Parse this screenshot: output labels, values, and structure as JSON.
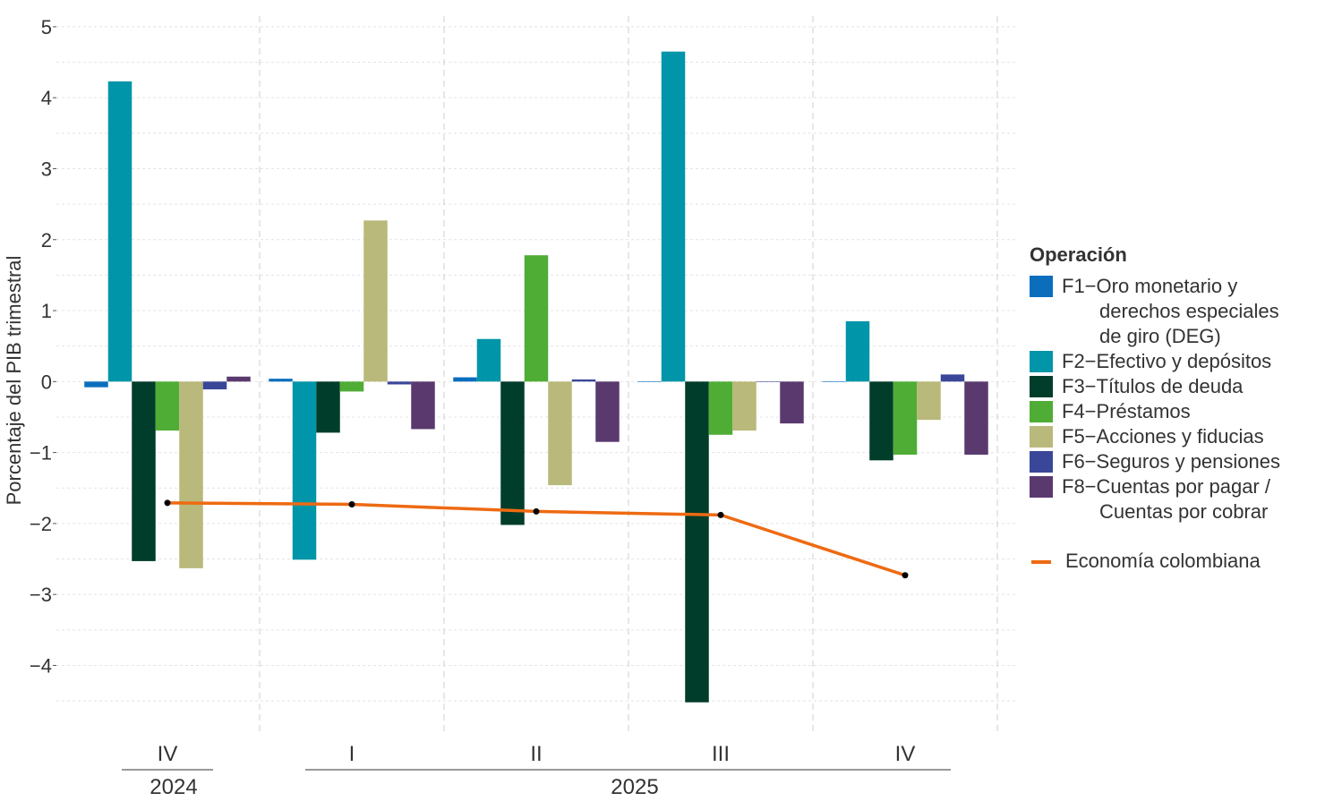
{
  "chart_data": {
    "type": "bar",
    "ylabel": "Porcentaje del PIB trimestral",
    "xlabel": "",
    "ylim": [
      -4.65,
      5.15
    ],
    "yticks": [
      -4,
      -3,
      -2,
      -1,
      0,
      1,
      2,
      3,
      4,
      5
    ],
    "ytick_labels": [
      "−4",
      "−3",
      "−2",
      "−1",
      "0",
      "1",
      "2",
      "3",
      "4",
      "5"
    ],
    "grid": true,
    "categories": [
      "IV",
      "I",
      "II",
      "III",
      "IV"
    ],
    "year_groups": [
      {
        "label": "2024",
        "categories": [
          "IV"
        ]
      },
      {
        "label": "2025",
        "categories": [
          "I",
          "II",
          "III",
          "IV"
        ]
      }
    ],
    "legend_title": "Operación",
    "legend_position": "right",
    "series": [
      {
        "name": "F1−Oro monetario y derechos especiales de giro (DEG)",
        "color": "#0a6ebd",
        "values": [
          -0.08,
          0.04,
          0.06,
          0.0,
          0.0
        ]
      },
      {
        "name": "F2−Efectivo y depósitos",
        "color": "#0095a8",
        "values": [
          4.23,
          -2.51,
          0.6,
          4.65,
          0.85
        ]
      },
      {
        "name": "F3−Títulos de deuda",
        "color": "#003d2a",
        "values": [
          -2.53,
          -0.72,
          -2.02,
          -4.52,
          -1.11
        ]
      },
      {
        "name": "F4−Préstamos",
        "color": "#4fad35",
        "values": [
          -0.69,
          -0.14,
          1.78,
          -0.75,
          -1.03
        ]
      },
      {
        "name": "F5−Acciones y fiducias",
        "color": "#b8b97a",
        "values": [
          -2.63,
          2.27,
          -1.46,
          -0.69,
          -0.54
        ]
      },
      {
        "name": "F6−Seguros y pensiones",
        "color": "#3a4799",
        "values": [
          -0.11,
          -0.04,
          0.03,
          0.0,
          0.1
        ]
      },
      {
        "name": "F8−Cuentas por pagar / Cuentas por cobrar",
        "color": "#5a3a6e",
        "values": [
          0.07,
          -0.67,
          -0.85,
          -0.59,
          -1.03
        ]
      }
    ],
    "line_series": {
      "name": "Economía colombiana",
      "color": "#ee6a12",
      "values": [
        -1.71,
        -1.73,
        -1.83,
        -1.88,
        -2.73
      ]
    }
  },
  "legend": {
    "title": "Operación",
    "items": [
      {
        "first": "F1−Oro monetario y",
        "rest": "derechos especiales\nde giro (DEG)"
      },
      {
        "first": "F2−Efectivo y depósitos",
        "rest": ""
      },
      {
        "first": "F3−Títulos de deuda",
        "rest": ""
      },
      {
        "first": "F4−Préstamos",
        "rest": ""
      },
      {
        "first": "F5−Acciones y fiducias",
        "rest": ""
      },
      {
        "first": "F6−Seguros y pensiones",
        "rest": ""
      },
      {
        "first": "F8−Cuentas por pagar /",
        "rest": "Cuentas por cobrar"
      }
    ],
    "line_label": "Economía colombiana"
  }
}
